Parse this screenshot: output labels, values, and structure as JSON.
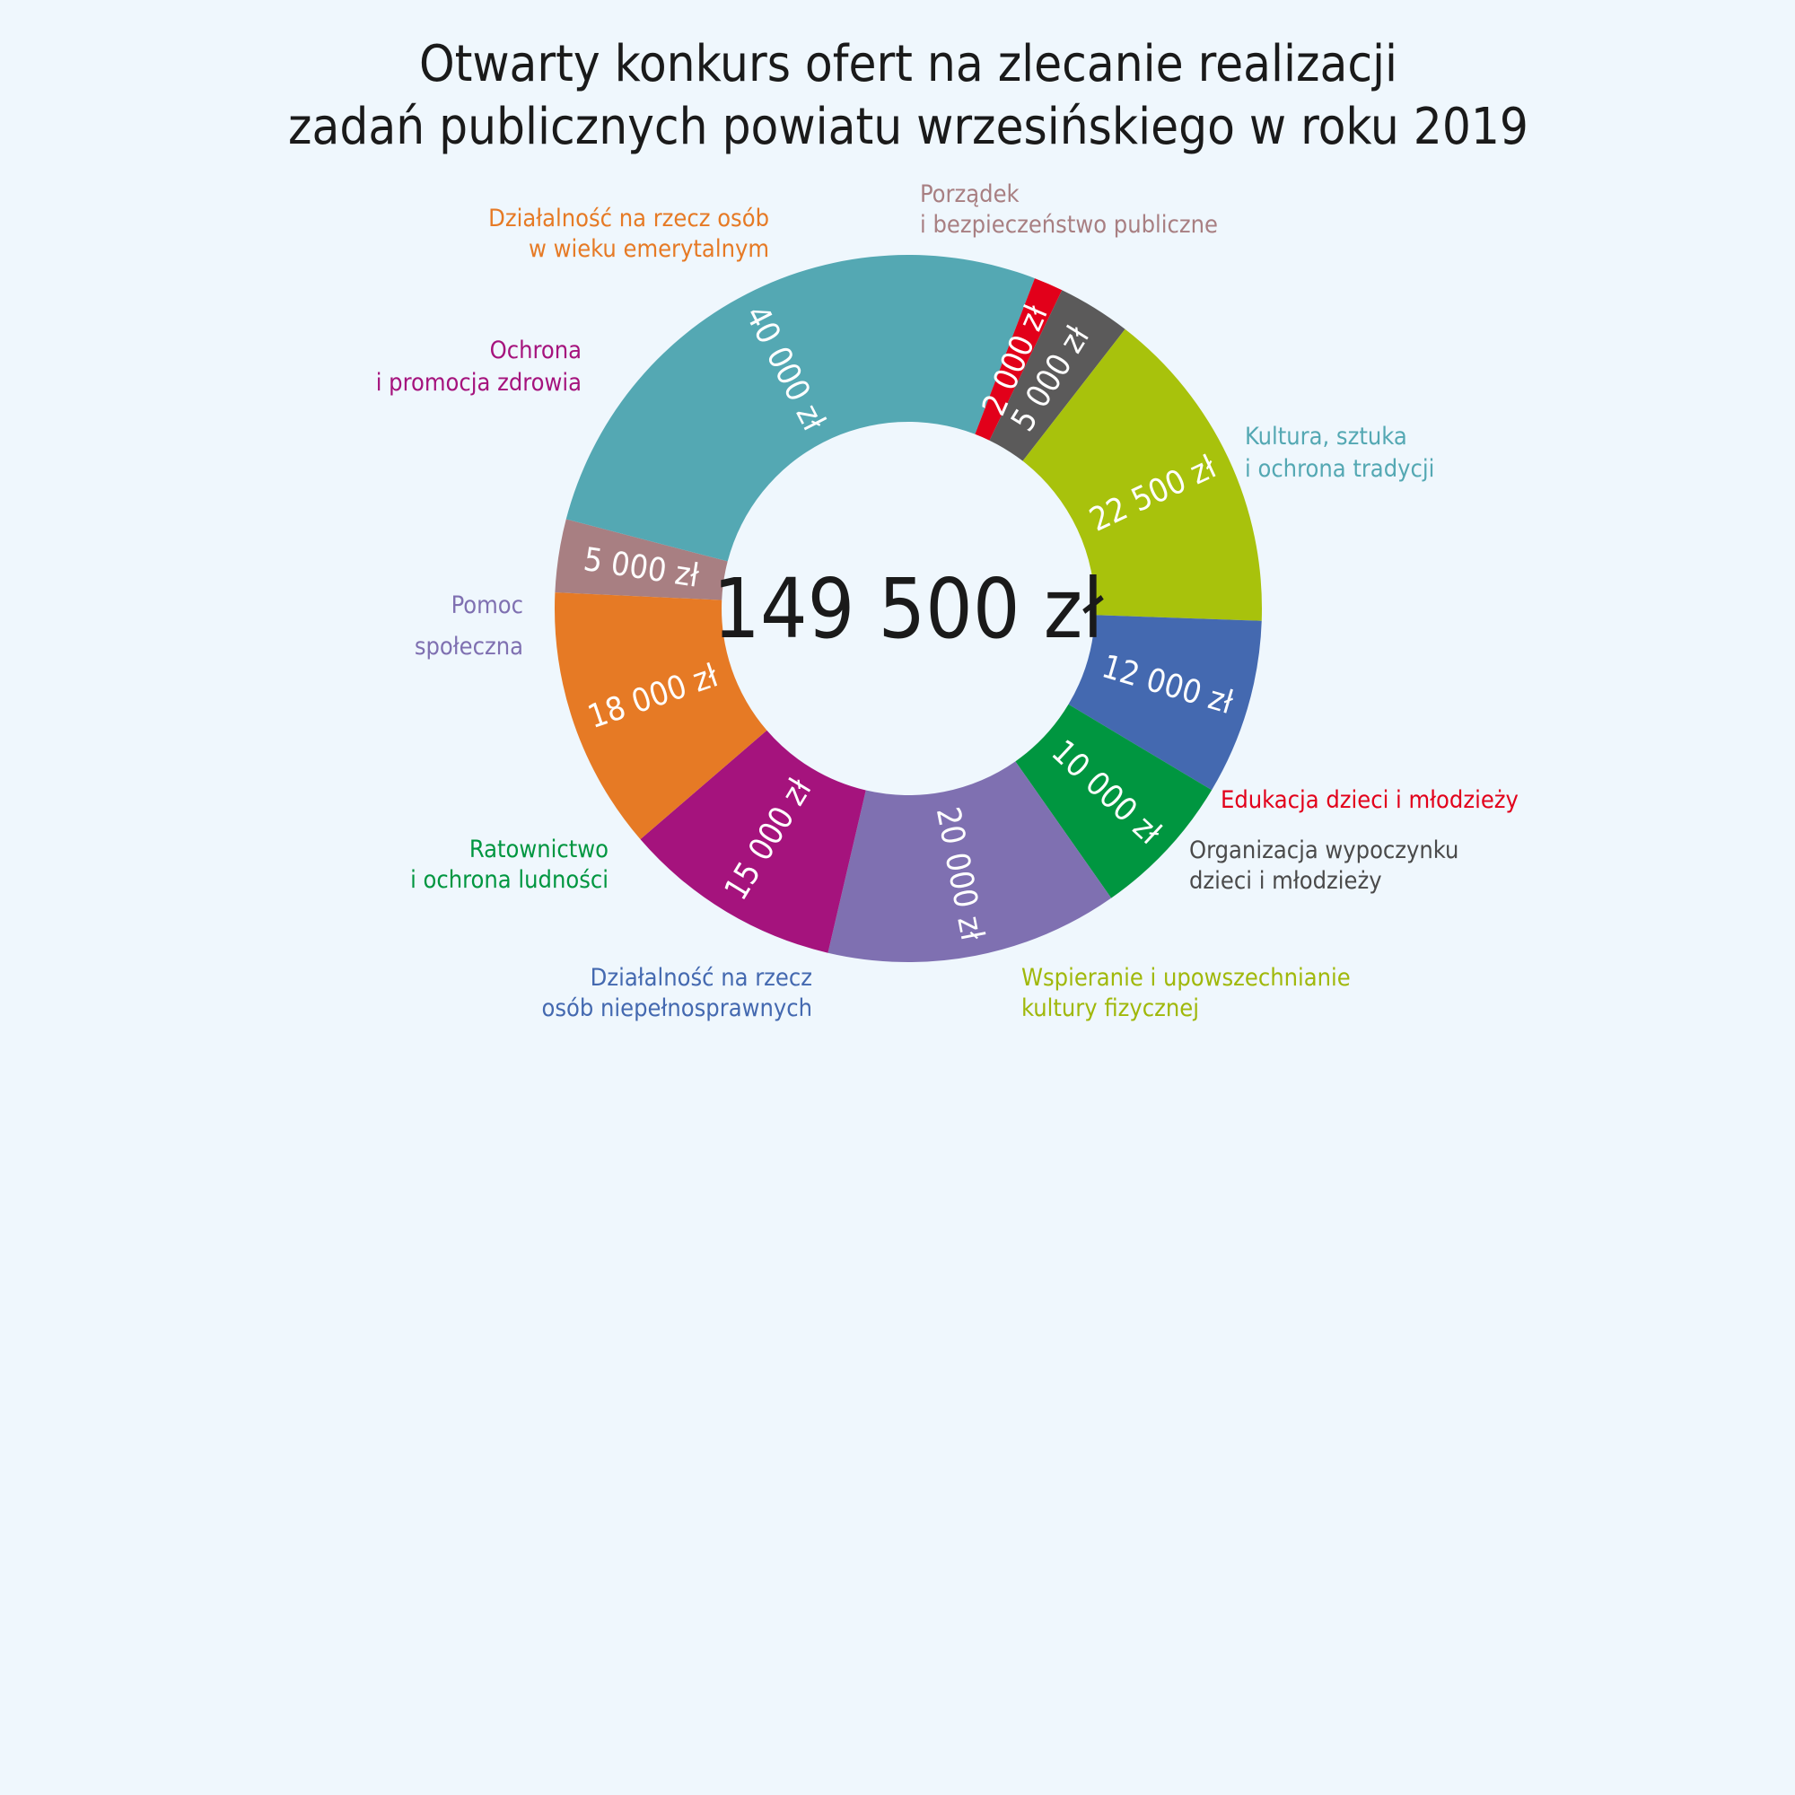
{
  "chart_data": {
    "type": "pie",
    "subtype": "donut",
    "title_lines": [
      "Otwarty konkurs ofert na zlecanie realizacji",
      "zadań publicznych powiatu wrzesińskiego w roku 2019"
    ],
    "total_label": "149 500 zł",
    "unit": "zł",
    "segments": [
      {
        "category": [
          "Porządek",
          "i bezpieczeństwo publiczne"
        ],
        "value": 5000,
        "value_label": "5 000 zł",
        "color": "#a87f82",
        "label_color": "#a87f82"
      },
      {
        "category": [
          "Kultura, sztuka",
          "i ochrona tradycji"
        ],
        "value": 40000,
        "value_label": "40 000 zł",
        "color": "#54a8b3",
        "label_color": "#54a8b3"
      },
      {
        "category": [
          "Edukacja dzieci i młodzieży"
        ],
        "value": 2000,
        "value_label": "2 000 zł",
        "color": "#e2001a",
        "label_color": "#e2001a"
      },
      {
        "category": [
          "Organizacja wypoczynku",
          "dzieci i młodzieży"
        ],
        "value": 5000,
        "value_label": "5 000 zł",
        "color": "#5b5a5a",
        "label_color": "#4a4a4a"
      },
      {
        "category": [
          "Wspieranie i upowszechnianie",
          "kultury fizycznej"
        ],
        "value": 22500,
        "value_label": "22 500 zł",
        "color": "#a8c20c",
        "label_color": "#a0b80a"
      },
      {
        "category": [
          "Działalność na rzecz",
          "osób niepełnosprawnych"
        ],
        "value": 12000,
        "value_label": "12 000 zł",
        "color": "#4469b0",
        "label_color": "#4469b0"
      },
      {
        "category": [
          "Ratownictwo",
          "i ochrona ludności"
        ],
        "value": 10000,
        "value_label": "10 000 zł",
        "color": "#009640",
        "label_color": "#009640"
      },
      {
        "category": [
          "Pomoc",
          "społeczna"
        ],
        "value": 20000,
        "value_label": "20 000 zł",
        "color": "#7f70b1",
        "label_color": "#7f70b1"
      },
      {
        "category": [
          "Ochrona",
          "i promocja zdrowia"
        ],
        "value": 15000,
        "value_label": "15 000 zł",
        "color": "#a5137d",
        "label_color": "#a5137d"
      },
      {
        "category": [
          "Działalność na rzecz osób",
          "w wieku emerytalnym"
        ],
        "value": 18000,
        "value_label": "18 000 zł",
        "color": "#e67a25",
        "label_color": "#e67a25"
      }
    ]
  }
}
